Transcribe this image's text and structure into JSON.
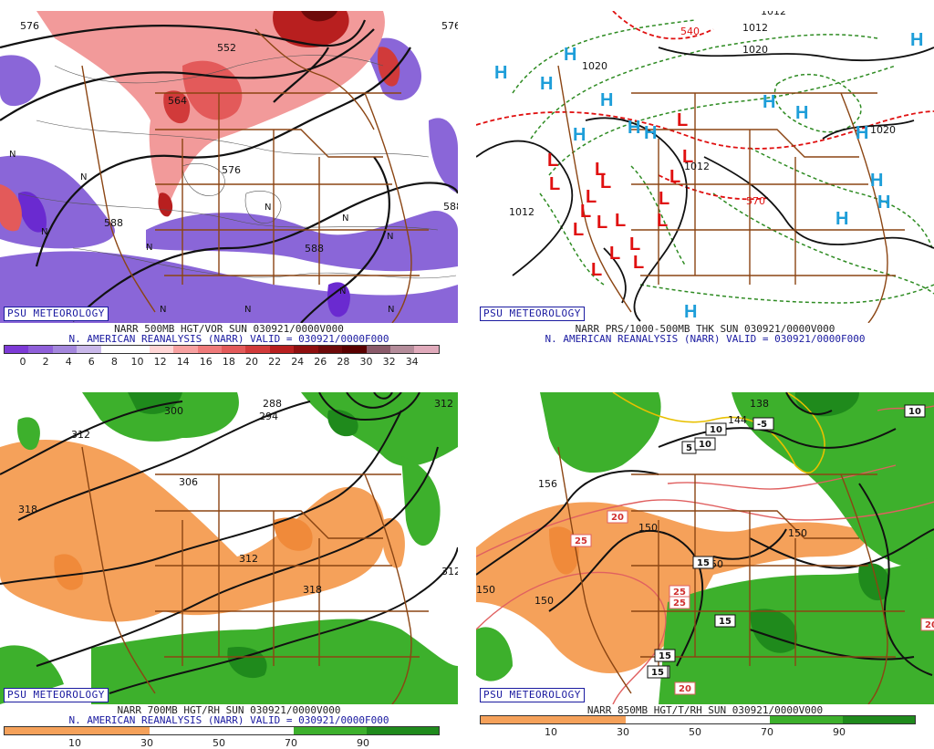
{
  "common": {
    "badge": "PSU METEOROLOGY"
  },
  "panels": [
    {
      "title": "NARR 500MB HGT/VOR SUN 030921/0000V000",
      "subtitle": "N. AMERICAN REANALYSIS (NARR) VALID = 030921/0000F000",
      "legend_ticks": [
        "0",
        "2",
        "4",
        "6",
        "8",
        "10",
        "12",
        "14",
        "16",
        "18",
        "20",
        "22",
        "24",
        "26",
        "28",
        "30",
        "32",
        "34"
      ],
      "legend_colors": [
        "#7d3ad6",
        "#8f5fd9",
        "#a487dd",
        "#c9b8ea",
        "#ffffff",
        "#ffffff",
        "#ffd6d6",
        "#f7a1a1",
        "#ef7a7a",
        "#e35a5a",
        "#d13a3a",
        "#b81f1f",
        "#8f0f0f",
        "#6e0a0a",
        "#5a0000",
        "#8a5a6a",
        "#b48c9a",
        "#e0aabb"
      ],
      "contour_labels": [
        "576",
        "552",
        "564",
        "576",
        "588",
        "588",
        "576",
        "588"
      ],
      "symbols": [
        "N",
        "N",
        "N",
        "N",
        "N",
        "N",
        "N",
        "N",
        "N",
        "N",
        "N"
      ]
    },
    {
      "title": "NARR PRS/1000-500MB THK SUN 030921/0000V000",
      "subtitle": "N. AMERICAN REANALYSIS (NARR) VALID = 030921/0000F000",
      "contour_labels": [
        "1012",
        "1020",
        "1020",
        "540",
        "1012",
        "1012",
        "1020",
        "570",
        "1012"
      ],
      "highs": [
        "H",
        "H",
        "H",
        "H",
        "H",
        "H",
        "H",
        "H",
        "H",
        "H",
        "H",
        "H",
        "H",
        "H",
        "H"
      ],
      "lows": [
        "L",
        "L",
        "L",
        "L",
        "L",
        "L",
        "L",
        "L",
        "L",
        "L",
        "L",
        "L",
        "L",
        "L",
        "L",
        "L",
        "L",
        "L"
      ]
    },
    {
      "title": "NARR 700MB HGT/RH SUN 030921/0000V000",
      "subtitle": "N. AMERICAN REANALYSIS (NARR) VALID = 030921/0000F000",
      "legend_ticks": [
        "10",
        "30",
        "50",
        "70",
        "90"
      ],
      "contour_labels": [
        "312",
        "300",
        "288",
        "294",
        "306",
        "312",
        "318",
        "312",
        "318",
        "312"
      ]
    },
    {
      "title": "NARR 850MB HGT/T/RH SUN 030921/0000V000",
      "subtitle": "",
      "legend_ticks": [
        "10",
        "30",
        "50",
        "70",
        "90"
      ],
      "contour_labels": [
        "138",
        "144",
        "156",
        "150",
        "150",
        "150",
        "150",
        "150"
      ],
      "temp_labels": [
        "10",
        "10",
        "-5",
        "5",
        "10",
        "20",
        "25",
        "25",
        "25",
        "15",
        "15",
        "15",
        "20",
        "15",
        "20",
        "15"
      ]
    }
  ],
  "colors": {
    "rh_dry": "#f5a15a",
    "rh_moist": "#3db02c",
    "rh_moist_dark": "#1f8a1c",
    "border": "#8b4513",
    "high": "#1e9ed9",
    "low": "#e01010"
  }
}
